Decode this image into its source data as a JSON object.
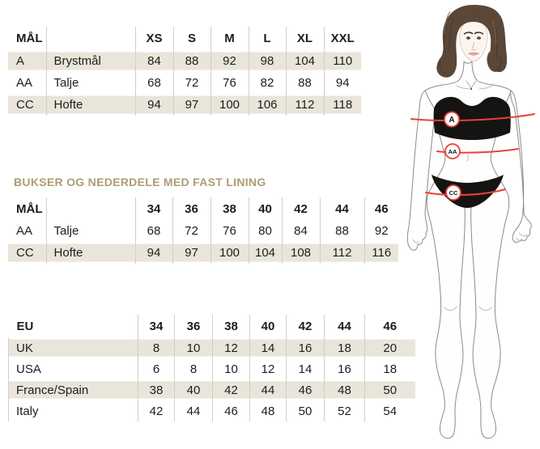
{
  "colors": {
    "row_shade": "#e9e5db",
    "column_divider": "#d2cfc6",
    "section_heading_text": "#ae9d72",
    "measure_red": "#e8413b",
    "table_text": "#1d1d1b",
    "garment_black": "#161413",
    "hair_brown": "#5a4737"
  },
  "section_bukser_heading": "BUKSER OG NEDERDELE MED FAST LINING",
  "tables": {
    "overdele": {
      "two_label_columns": true,
      "label_header": "MÅL",
      "size_headers": [
        "XS",
        "S",
        "M",
        "L",
        "XL",
        "XXL"
      ],
      "rows": [
        {
          "code": "A",
          "name": "Brystmål",
          "values": [
            84,
            88,
            92,
            98,
            104,
            110
          ],
          "shaded": true
        },
        {
          "code": "AA",
          "name": "Talje",
          "values": [
            68,
            72,
            76,
            82,
            88,
            94
          ],
          "shaded": false
        },
        {
          "code": "CC",
          "name": "Hofte",
          "values": [
            94,
            97,
            100,
            106,
            112,
            118
          ],
          "shaded": true
        }
      ]
    },
    "bukser": {
      "two_label_columns": true,
      "label_header": "MÅL",
      "size_headers": [
        "34",
        "36",
        "38",
        "40",
        "42",
        "44",
        "46"
      ],
      "rows": [
        {
          "code": "AA",
          "name": "Talje",
          "values": [
            68,
            72,
            76,
            80,
            84,
            88,
            92
          ],
          "shaded": false
        },
        {
          "code": "CC",
          "name": "Hofte",
          "values": [
            94,
            97,
            100,
            104,
            108,
            112,
            116
          ],
          "shaded": true
        }
      ]
    },
    "conversion": {
      "two_label_columns": false,
      "label_header": "EU",
      "size_headers": [
        "34",
        "36",
        "38",
        "40",
        "42",
        "44",
        "46"
      ],
      "rows": [
        {
          "name": "UK",
          "values": [
            8,
            10,
            12,
            14,
            16,
            18,
            20
          ],
          "shaded": true
        },
        {
          "name": "USA",
          "values": [
            6,
            8,
            10,
            12,
            14,
            16,
            18
          ],
          "shaded": false
        },
        {
          "name": "France/Spain",
          "values": [
            38,
            40,
            42,
            44,
            46,
            48,
            50
          ],
          "shaded": true
        },
        {
          "name": "Italy",
          "values": [
            42,
            44,
            46,
            48,
            50,
            52,
            54
          ],
          "shaded": false
        }
      ]
    }
  },
  "figure": {
    "markers": [
      {
        "label": "A"
      },
      {
        "label": "AA"
      },
      {
        "label": "CC"
      }
    ]
  }
}
